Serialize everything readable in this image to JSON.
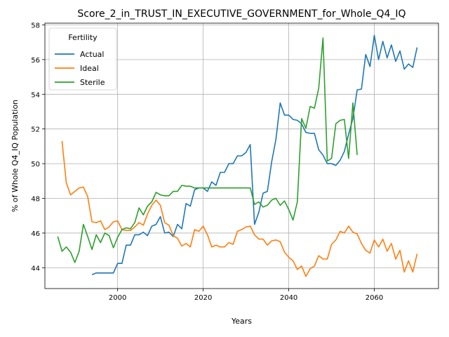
{
  "chart_data": {
    "type": "line",
    "title": "Score_2_in_TRUST_IN_EXECUTIVE_GOVERNMENT_for_Whole_Q4_IQ",
    "xlabel": "Years",
    "ylabel": "% of Whole Q4_IQ Population",
    "xlim": [
      1983,
      2075
    ],
    "ylim": [
      42.8,
      58.1
    ],
    "xticks": [
      2000,
      2020,
      2040,
      2060
    ],
    "yticks": [
      44,
      46,
      48,
      50,
      52,
      54,
      56,
      58
    ],
    "grid": true,
    "legend": {
      "title": "Fertility",
      "placement": "top-left"
    },
    "colors": {
      "Actual": "#1f77b4",
      "Ideal": "#ff7f0e",
      "Sterile": "#2ca02c"
    },
    "series": [
      {
        "name": "Actual",
        "x": [
          1994,
          1995,
          1996,
          1997,
          1998,
          1999,
          2000,
          2001,
          2002,
          2003,
          2004,
          2005,
          2006,
          2007,
          2008,
          2009,
          2010,
          2011,
          2012,
          2013,
          2014,
          2015,
          2016,
          2017,
          2018,
          2019,
          2020,
          2021,
          2022,
          2023,
          2024,
          2025,
          2026,
          2027,
          2028,
          2029,
          2030,
          2031,
          2032,
          2033,
          2034,
          2035,
          2036,
          2037,
          2038,
          2039,
          2040,
          2041,
          2042,
          2043,
          2044,
          2045,
          2046,
          2047,
          2048,
          2049,
          2050,
          2051,
          2052,
          2053,
          2054,
          2055,
          2056,
          2057,
          2058,
          2059,
          2060,
          2061,
          2062,
          2063,
          2064,
          2065,
          2066,
          2067,
          2068,
          2069,
          2070
        ],
        "values": [
          43.6,
          43.7,
          43.7,
          43.7,
          43.7,
          43.7,
          44.25,
          44.25,
          45.3,
          45.3,
          45.9,
          45.9,
          46.05,
          45.85,
          46.4,
          46.5,
          46.95,
          46.0,
          46.05,
          45.8,
          46.5,
          46.25,
          47.7,
          47.55,
          48.5,
          48.6,
          48.6,
          48.4,
          48.95,
          48.75,
          49.5,
          49.5,
          50.0,
          50.0,
          50.45,
          50.45,
          50.65,
          51.1,
          46.5,
          47.2,
          48.3,
          48.4,
          50.1,
          51.4,
          53.5,
          52.8,
          52.8,
          52.55,
          52.5,
          52.3,
          51.8,
          51.75,
          51.75,
          50.8,
          50.5,
          50.0,
          50.0,
          49.9,
          50.2,
          50.7,
          51.7,
          52.6,
          54.25,
          54.3,
          56.3,
          55.6,
          57.4,
          56.0,
          57.05,
          56.1,
          56.85,
          55.9,
          56.5,
          55.45,
          55.75,
          55.55,
          56.7
        ]
      },
      {
        "name": "Ideal",
        "x": [
          1987,
          1988,
          1989,
          1990,
          1991,
          1992,
          1993,
          1994,
          1995,
          1996,
          1997,
          1998,
          1999,
          2000,
          2001,
          2002,
          2003,
          2004,
          2005,
          2006,
          2007,
          2008,
          2009,
          2010,
          2011,
          2012,
          2013,
          2014,
          2015,
          2016,
          2017,
          2018,
          2019,
          2020,
          2021,
          2022,
          2023,
          2024,
          2025,
          2026,
          2027,
          2028,
          2029,
          2030,
          2031,
          2032,
          2033,
          2034,
          2035,
          2036,
          2037,
          2038,
          2039,
          2040,
          2041,
          2042,
          2043,
          2044,
          2045,
          2046,
          2047,
          2048,
          2049,
          2050,
          2051,
          2052,
          2053,
          2054,
          2055,
          2056,
          2057,
          2058,
          2059,
          2060,
          2061,
          2062,
          2063,
          2064,
          2065,
          2066,
          2067,
          2068,
          2069,
          2070
        ],
        "values": [
          51.3,
          48.9,
          48.2,
          48.4,
          48.6,
          48.65,
          48.1,
          46.65,
          46.6,
          46.7,
          46.2,
          46.35,
          46.65,
          46.7,
          46.2,
          46.15,
          46.15,
          46.35,
          46.6,
          46.45,
          47.1,
          47.6,
          47.9,
          47.6,
          46.6,
          46.45,
          45.85,
          45.7,
          45.25,
          45.4,
          45.2,
          46.2,
          46.1,
          46.4,
          45.9,
          45.2,
          45.3,
          45.2,
          45.2,
          45.45,
          45.35,
          46.1,
          46.2,
          46.35,
          46.4,
          45.9,
          45.65,
          45.65,
          45.3,
          45.55,
          45.6,
          45.5,
          44.9,
          44.6,
          44.4,
          43.9,
          44.1,
          43.5,
          43.95,
          44.1,
          44.7,
          44.5,
          44.5,
          45.35,
          45.6,
          46.1,
          46.0,
          46.4,
          46.05,
          45.95,
          45.4,
          45.0,
          44.85,
          45.6,
          45.2,
          45.65,
          44.95,
          45.4,
          44.5,
          45.0,
          43.75,
          44.4,
          43.75,
          44.8
        ]
      },
      {
        "name": "Sterile",
        "x": [
          1986,
          1987,
          1988,
          1989,
          1990,
          1991,
          1992,
          1993,
          1994,
          1995,
          1996,
          1997,
          1998,
          1999,
          2000,
          2001,
          2002,
          2003,
          2004,
          2005,
          2006,
          2007,
          2008,
          2009,
          2010,
          2011,
          2012,
          2013,
          2014,
          2015,
          2016,
          2017,
          2018,
          2019,
          2020,
          2021,
          2022,
          2023,
          2024,
          2025,
          2026,
          2027,
          2028,
          2029,
          2030,
          2031,
          2032,
          2033,
          2034,
          2035,
          2036,
          2037,
          2038,
          2039,
          2040,
          2041,
          2042,
          2043,
          2044,
          2045,
          2046,
          2047,
          2048,
          2049,
          2050,
          2051,
          2052,
          2053,
          2054,
          2055,
          2056
        ],
        "values": [
          45.8,
          44.95,
          45.2,
          44.9,
          44.3,
          44.95,
          46.5,
          45.8,
          45.05,
          45.9,
          45.45,
          46.0,
          45.85,
          45.15,
          45.75,
          46.2,
          46.3,
          46.25,
          46.6,
          47.45,
          47.05,
          47.55,
          47.8,
          48.35,
          48.2,
          48.15,
          48.15,
          48.4,
          48.4,
          48.75,
          48.7,
          48.7,
          48.6,
          48.6,
          48.6,
          48.6,
          48.6,
          48.6,
          48.6,
          48.6,
          48.6,
          48.6,
          48.6,
          48.6,
          48.6,
          48.6,
          47.65,
          47.8,
          47.5,
          47.6,
          47.9,
          48.0,
          47.6,
          47.85,
          47.35,
          46.75,
          47.8,
          52.6,
          52.05,
          53.3,
          53.2,
          54.35,
          57.25,
          50.15,
          50.3,
          52.3,
          52.5,
          52.55,
          50.3,
          53.5,
          50.5
        ]
      }
    ]
  }
}
